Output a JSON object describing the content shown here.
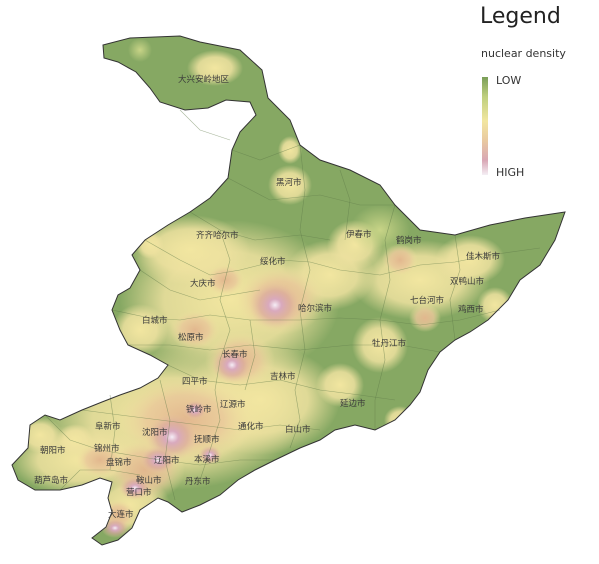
{
  "legend": {
    "title": "Legend",
    "subtitle": "nuclear density",
    "low_label": "LOW",
    "high_label": "HIGH",
    "ramp": [
      "#7a9e58",
      "#bfcf7e",
      "#f2e6a0",
      "#e9c9a0",
      "#d9a7b5",
      "#f4eef4"
    ]
  },
  "colors": {
    "land": "#86a863",
    "boundary": "#5f7a48",
    "outline": "#333333"
  },
  "cities": [
    {
      "id": "daxinganling",
      "name": "大兴安岭地区",
      "density": "low"
    },
    {
      "id": "heihe",
      "name": "黑河市",
      "density": "low"
    },
    {
      "id": "yichun",
      "name": "伊春市",
      "density": "low"
    },
    {
      "id": "hegang",
      "name": "鹤岗市",
      "density": "medium"
    },
    {
      "id": "jiamusi",
      "name": "佳木斯市",
      "density": "medium"
    },
    {
      "id": "qiqihar",
      "name": "齐齐哈尔市",
      "density": "medium"
    },
    {
      "id": "suihua",
      "name": "绥化市",
      "density": "medium"
    },
    {
      "id": "shuangyashan",
      "name": "双鸭山市",
      "density": "medium"
    },
    {
      "id": "qitaihe",
      "name": "七台河市",
      "density": "medium"
    },
    {
      "id": "jixi",
      "name": "鸡西市",
      "density": "medium"
    },
    {
      "id": "daqing",
      "name": "大庆市",
      "density": "medium"
    },
    {
      "id": "harbin",
      "name": "哈尔滨市",
      "density": "high"
    },
    {
      "id": "baicheng",
      "name": "白城市",
      "density": "low"
    },
    {
      "id": "songyuan",
      "name": "松原市",
      "density": "medium"
    },
    {
      "id": "mudanjiang",
      "name": "牡丹江市",
      "density": "medium"
    },
    {
      "id": "changchun",
      "name": "长春市",
      "density": "high"
    },
    {
      "id": "jilin",
      "name": "吉林市",
      "density": "medium"
    },
    {
      "id": "siping",
      "name": "四平市",
      "density": "medium"
    },
    {
      "id": "yanbian",
      "name": "延边市",
      "density": "medium"
    },
    {
      "id": "liaoyuan",
      "name": "辽源市",
      "density": "medium"
    },
    {
      "id": "tieling",
      "name": "铁岭市",
      "density": "medium"
    },
    {
      "id": "fuxin",
      "name": "阜新市",
      "density": "medium"
    },
    {
      "id": "tonghua",
      "name": "通化市",
      "density": "medium"
    },
    {
      "id": "baishan",
      "name": "白山市",
      "density": "low"
    },
    {
      "id": "shenyang",
      "name": "沈阳市",
      "density": "high"
    },
    {
      "id": "fushun",
      "name": "抚顺市",
      "density": "medium"
    },
    {
      "id": "chaoyang",
      "name": "朝阳市",
      "density": "medium"
    },
    {
      "id": "jinzhou",
      "name": "锦州市",
      "density": "medium"
    },
    {
      "id": "liaoyang",
      "name": "辽阳市",
      "density": "high"
    },
    {
      "id": "benxi",
      "name": "本溪市",
      "density": "medium"
    },
    {
      "id": "panjin",
      "name": "盘锦市",
      "density": "medium"
    },
    {
      "id": "huludao",
      "name": "葫芦岛市",
      "density": "medium"
    },
    {
      "id": "anshan",
      "name": "鞍山市",
      "density": "high"
    },
    {
      "id": "dandong",
      "name": "丹东市",
      "density": "medium"
    },
    {
      "id": "yingkou",
      "name": "营口市",
      "density": "high"
    },
    {
      "id": "dalian",
      "name": "大连市",
      "density": "high"
    }
  ]
}
